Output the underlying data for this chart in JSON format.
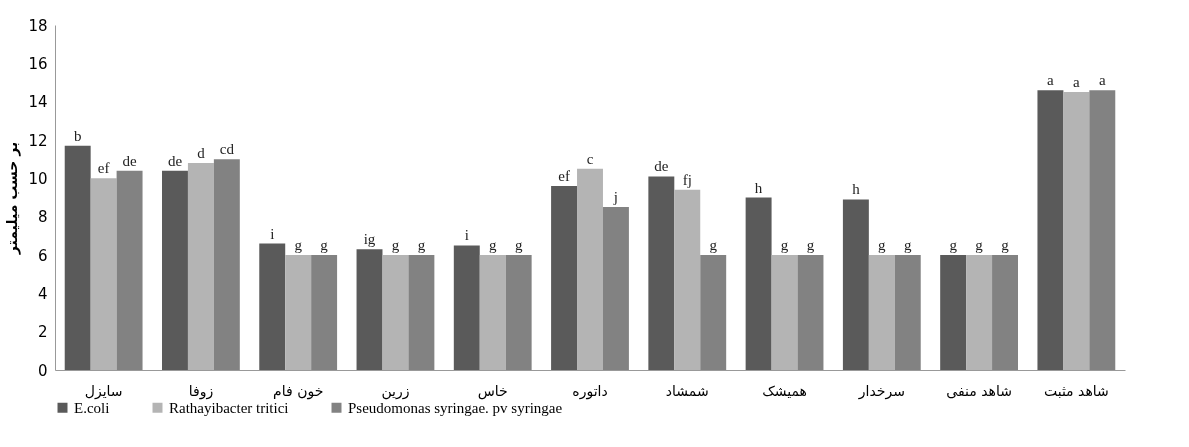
{
  "chart_data": {
    "type": "bar",
    "ylabel": "بر حسب میلیمتر",
    "categories": [
      "سایزل",
      "زوفا",
      "خون فام",
      "زرین",
      "خاس",
      "داتوره",
      "شمشاد",
      "همیشک",
      "سرخدار",
      "شاهد منفی",
      "شاهد مثبت"
    ],
    "series": [
      {
        "name": "E.coli",
        "color": "#5a5a5a",
        "values": [
          11.7,
          10.4,
          6.6,
          6.3,
          6.5,
          9.6,
          10.1,
          9.0,
          8.9,
          6.0,
          14.6
        ],
        "value_labels": [
          "b",
          "de",
          "i",
          "ig",
          "i",
          "ef",
          "de",
          "h",
          "h",
          "g",
          "a"
        ]
      },
      {
        "name": "Rathayibacter tritici",
        "color": "#b4b4b4",
        "values": [
          10.0,
          10.8,
          6.0,
          6.0,
          6.0,
          10.5,
          9.4,
          6.0,
          6.0,
          6.0,
          14.5
        ],
        "value_labels": [
          "ef",
          "d",
          "g",
          "g",
          "g",
          "c",
          "fj",
          "g",
          "g",
          "g",
          "a"
        ]
      },
      {
        "name": "Pseudomonas syringae. pv syringae",
        "color": "#828282",
        "values": [
          10.4,
          11.0,
          6.0,
          6.0,
          6.0,
          8.5,
          6.0,
          6.0,
          6.0,
          6.0,
          14.6
        ],
        "value_labels": [
          "de",
          "cd",
          "g",
          "g",
          "g",
          "j",
          "g",
          "g",
          "g",
          "g",
          "a"
        ]
      }
    ],
    "ylim": [
      0,
      18
    ],
    "yticks": [
      0,
      2,
      4,
      6,
      8,
      10,
      12,
      14,
      16,
      18
    ],
    "grid": false,
    "legend": "bottom"
  }
}
